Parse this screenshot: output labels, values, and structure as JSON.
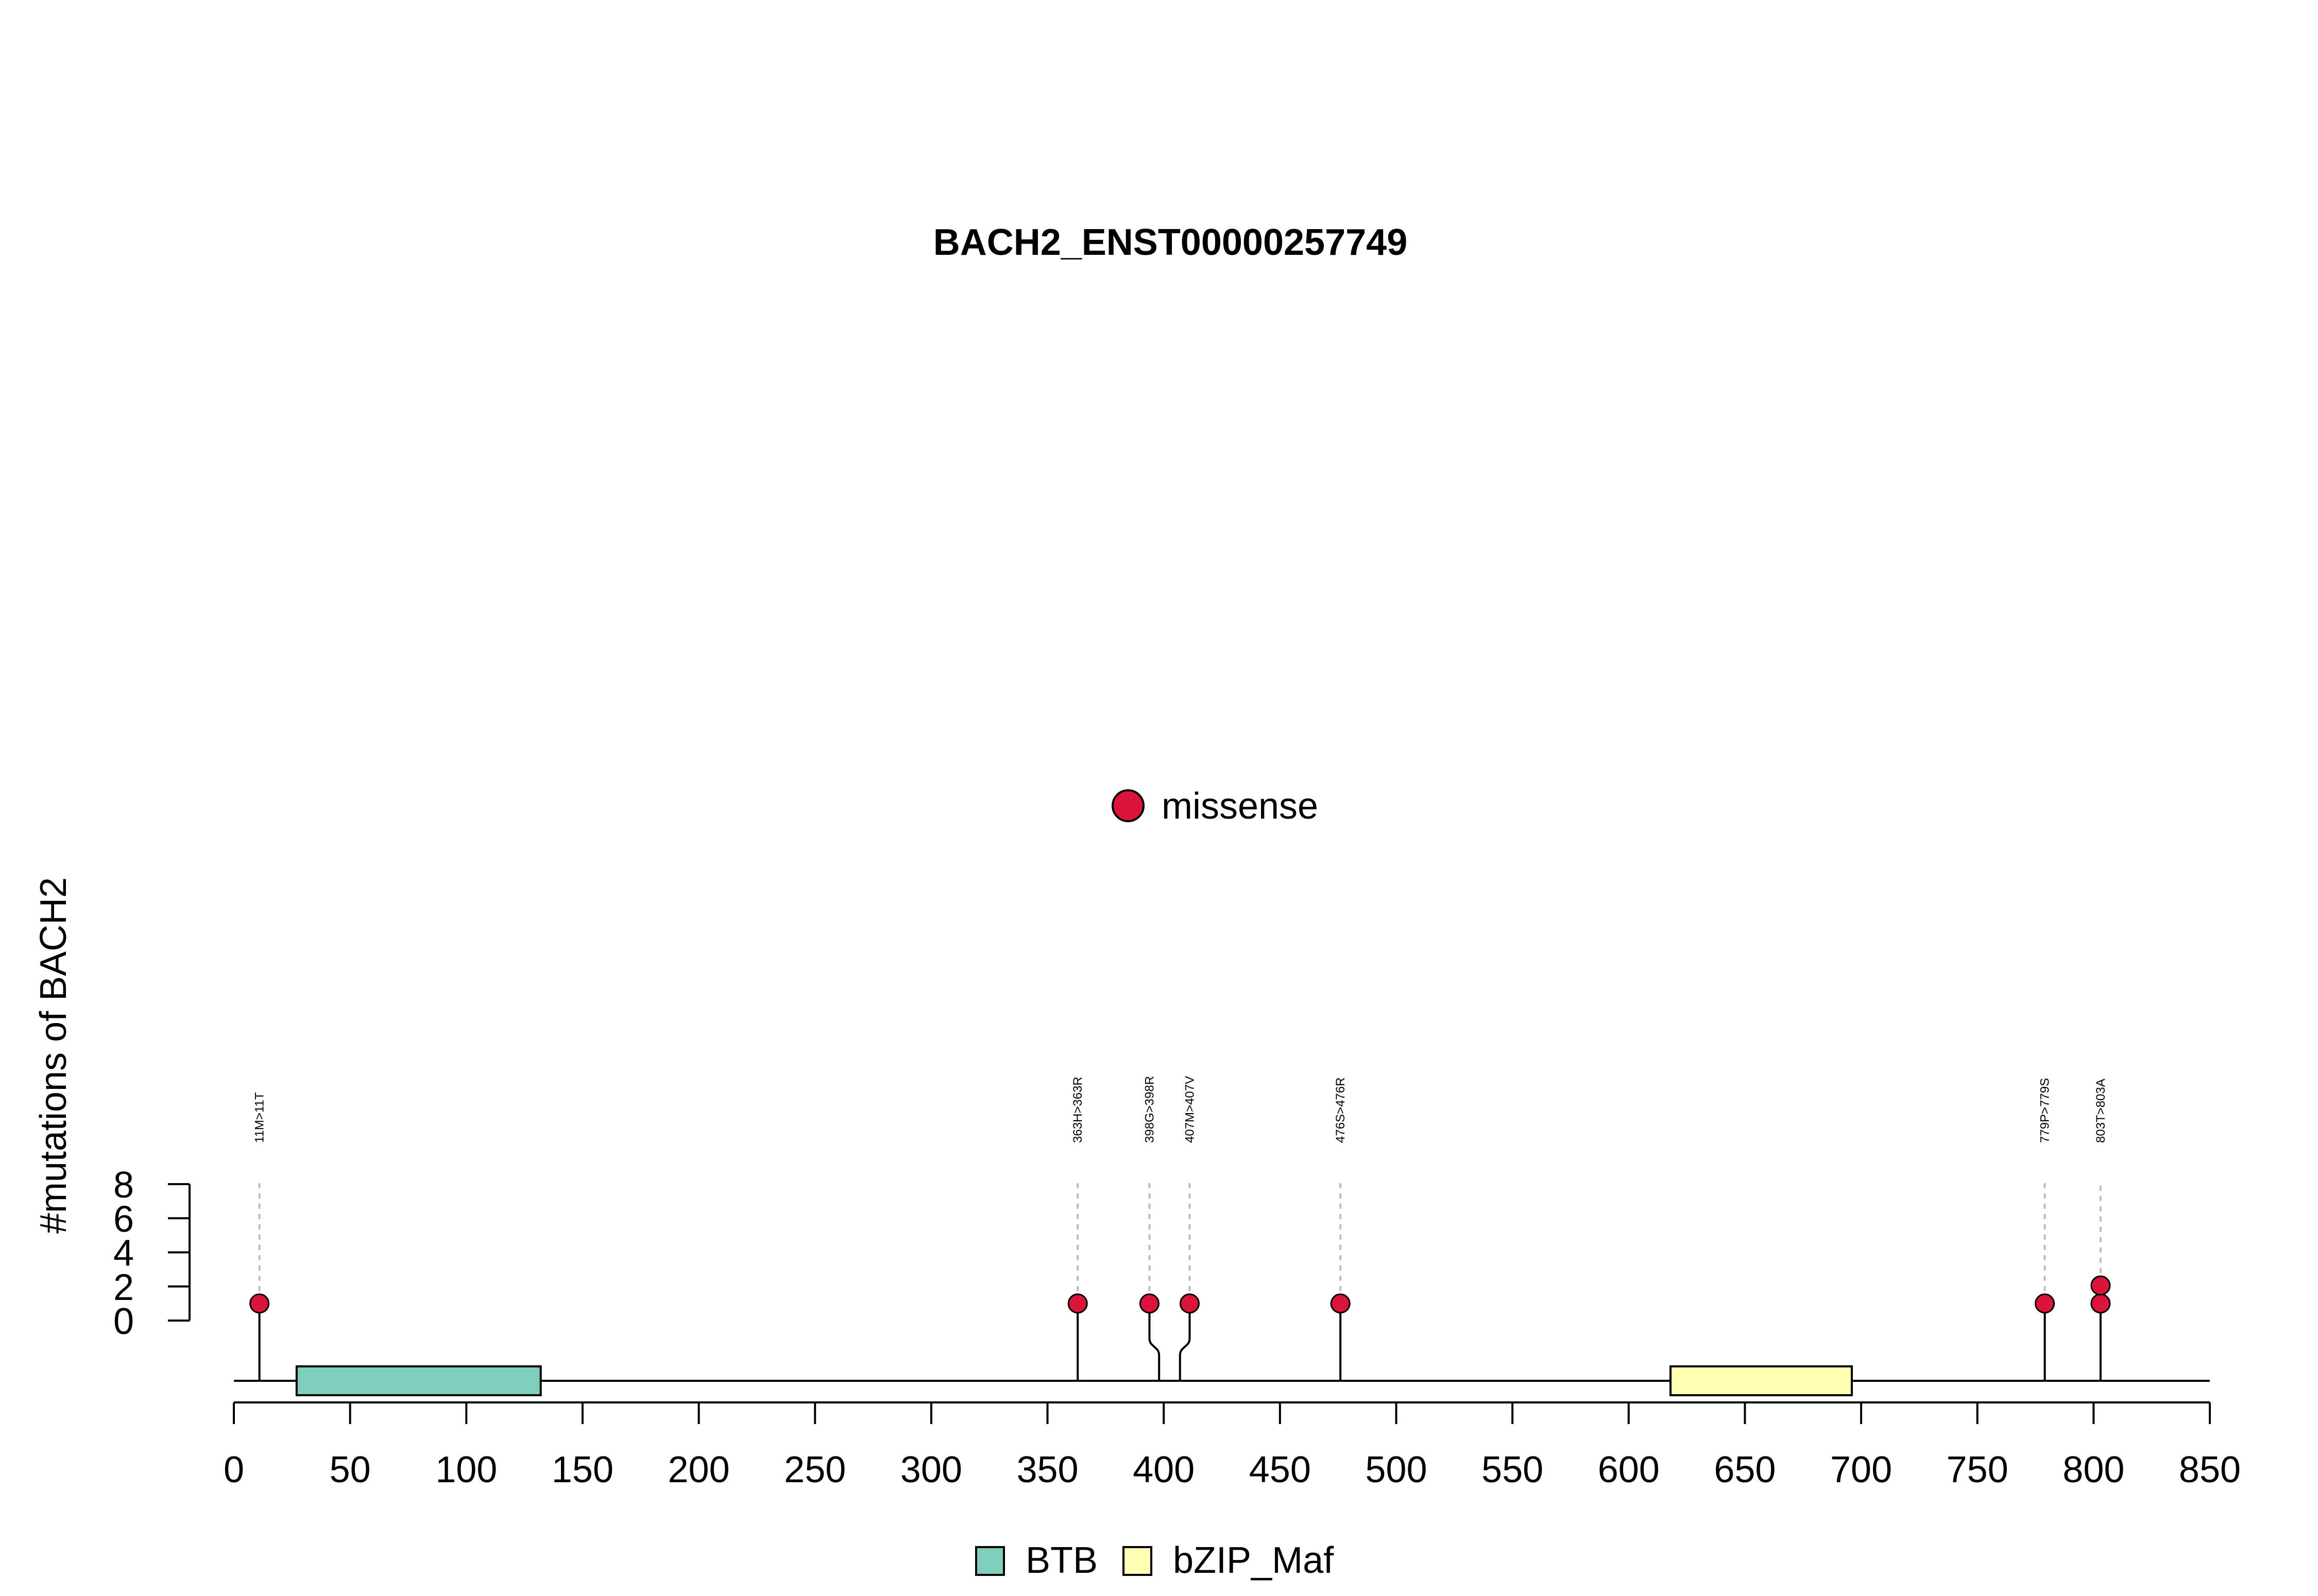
{
  "chart_data": {
    "type": "lollipop",
    "title": "BACH2_ENST00000257749",
    "ylabel": "#mutations of BACH2",
    "xlim": [
      0,
      850
    ],
    "x_ticks": [
      0,
      50,
      100,
      150,
      200,
      250,
      300,
      350,
      400,
      450,
      500,
      550,
      600,
      650,
      700,
      750,
      800,
      850
    ],
    "x_tick_labels": [
      "0",
      "50",
      "100",
      "150",
      "200",
      "250",
      "300",
      "350",
      "400",
      "450",
      "500",
      "550",
      "600",
      "650",
      "700",
      "750",
      "800",
      "850"
    ],
    "y_ticks": [
      0,
      2,
      4,
      6,
      8
    ],
    "y_tick_labels": [
      "0",
      "2",
      "4",
      "6",
      "8"
    ],
    "protein_length": 841,
    "mutation_legend": [
      {
        "label": "missense",
        "color": "#DC143C"
      }
    ],
    "domains": [
      {
        "name": "BTB",
        "start": 27,
        "end": 132,
        "color": "#7FCDBB"
      },
      {
        "name": "bZIP_Maf",
        "start": 618,
        "end": 696,
        "color": "#FFFFB3"
      }
    ],
    "domain_legend": [
      {
        "label": "BTB",
        "color": "#7FCDBB"
      },
      {
        "label": "bZIP_Maf",
        "color": "#FFFFB3"
      }
    ],
    "mutations": [
      {
        "label": "11M>11T",
        "position": 11,
        "count": 1,
        "type": "missense"
      },
      {
        "label": "363H>363R",
        "position": 363,
        "count": 1,
        "type": "missense"
      },
      {
        "label": "398G>398R",
        "position": 398,
        "count": 1,
        "type": "missense"
      },
      {
        "label": "407M>407V",
        "position": 407,
        "count": 1,
        "type": "missense"
      },
      {
        "label": "476S>476R",
        "position": 476,
        "count": 1,
        "type": "missense"
      },
      {
        "label": "779P>779S",
        "position": 779,
        "count": 1,
        "type": "missense"
      },
      {
        "label": "803T>803A",
        "position": 803,
        "count": 2,
        "type": "missense"
      }
    ]
  }
}
